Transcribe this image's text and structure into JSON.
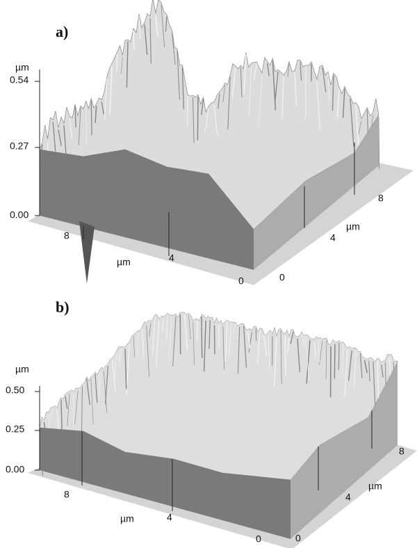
{
  "panels": [
    {
      "label": "a)",
      "z_axis": {
        "unit": "µm",
        "ticks": [
          "0.54",
          "0.27",
          "0.00"
        ]
      },
      "x_axis": {
        "unit": "µm",
        "ticks": [
          "8",
          "4",
          "0"
        ]
      },
      "y_axis": {
        "unit": "µm",
        "ticks": [
          "0",
          "4",
          "8"
        ]
      }
    },
    {
      "label": "b)",
      "z_axis": {
        "unit": "µm",
        "ticks": [
          "0.50",
          "0.25",
          "0.00"
        ]
      },
      "x_axis": {
        "unit": "µm",
        "ticks": [
          "8",
          "4",
          "0"
        ]
      },
      "y_axis": {
        "unit": "µm",
        "ticks": [
          "0",
          "4",
          "8"
        ]
      }
    }
  ]
}
